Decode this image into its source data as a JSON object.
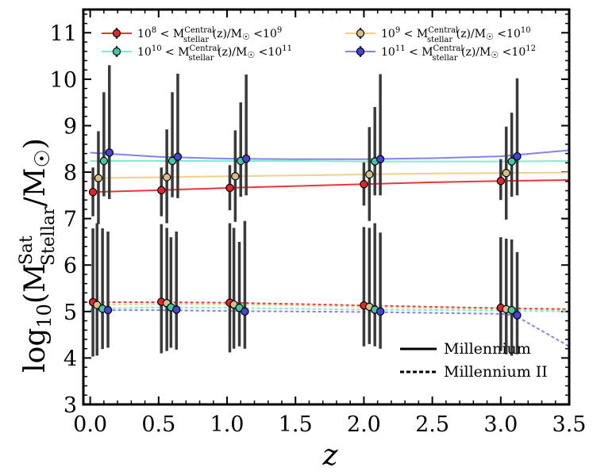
{
  "chart_data": {
    "type": "line",
    "xlabel": "z",
    "ylabel": "log10(M Stellar Sat / M sun)",
    "ylabel_parts": {
      "prefix": "log",
      "sub10": "10",
      "open": "(M",
      "sup": "Sat",
      "sub": "Stellar",
      "mid": "/M",
      "sun": "☉",
      "close": ")"
    },
    "xlim": [
      -0.05,
      3.5
    ],
    "ylim": [
      3,
      11.5
    ],
    "xticks": [
      0.0,
      0.5,
      1.0,
      1.5,
      2.0,
      2.5,
      3.0,
      3.5
    ],
    "xtick_labels": [
      "0.0",
      "0.5",
      "1.0",
      "1.5",
      "2.0",
      "2.5",
      "3.0",
      "3.5"
    ],
    "yticks": [
      3,
      4,
      5,
      6,
      7,
      8,
      9,
      10,
      11
    ],
    "ytick_labels": [
      "3",
      "4",
      "5",
      "6",
      "7",
      "8",
      "9",
      "10",
      "11"
    ],
    "legend": [
      {
        "id": "s1",
        "color": "#e8383a",
        "marker": "#e8222a",
        "lo": "10",
        "lo_exp": "8",
        "hi": "10",
        "hi_exp": "9",
        "lt": "<",
        "M": "M",
        "sup": "Central",
        "sub": "stellar",
        "zpart": "(z)/M",
        "sun": "☉"
      },
      {
        "id": "s2",
        "color": "#f0d08a",
        "marker": "#d4bf86",
        "lo": "10",
        "lo_exp": "9",
        "hi": "10",
        "hi_exp": "10",
        "lt": "<",
        "M": "M",
        "sup": "Central",
        "sub": "stellar",
        "zpart": "(z)/M",
        "sun": "☉"
      },
      {
        "id": "s3",
        "color": "#80ecd2",
        "marker": "#3ec9a4",
        "lo": "10",
        "lo_exp": "10",
        "hi": "10",
        "hi_exp": "11",
        "lt": "<",
        "M": "M",
        "sup": "Central",
        "sub": "stellar",
        "zpart": "(z)/M",
        "sun": "☉"
      },
      {
        "id": "s4",
        "color": "#8282f0",
        "marker": "#4444d8",
        "lo": "10",
        "lo_exp": "11",
        "hi": "10",
        "hi_exp": "12",
        "lt": "<",
        "M": "M",
        "sup": "Central",
        "sub": "stellar",
        "zpart": "(z)/M",
        "sun": "☉"
      }
    ],
    "legend2": [
      {
        "label": "Millennium",
        "style": "solid"
      },
      {
        "label": "Millennium II",
        "style": "dashed"
      }
    ],
    "series": [
      {
        "id": "s1",
        "name": "10^8 < M_stellar^Central(z)/M_sun < 10^9 (Millennium)",
        "color": "#e8383a",
        "dashed": false,
        "x": [
          0.0,
          0.5,
          1.0,
          1.5,
          2.0,
          2.5,
          3.0,
          3.5
        ],
        "y": [
          7.57,
          7.61,
          7.66,
          7.7,
          7.74,
          7.78,
          7.81,
          7.83
        ]
      },
      {
        "id": "s2",
        "name": "10^9 < M_stellar^Central(z)/M_sun < 10^10 (Millennium)",
        "color": "#f0d08a",
        "dashed": false,
        "x": [
          0.0,
          0.5,
          1.0,
          1.5,
          2.0,
          2.5,
          3.0,
          3.5
        ],
        "y": [
          7.87,
          7.89,
          7.91,
          7.93,
          7.95,
          7.97,
          7.98,
          7.99
        ]
      },
      {
        "id": "s3",
        "name": "10^10 < M_stellar^Central(z)/M_sun < 10^11 (Millennium)",
        "color": "#80ecd2",
        "dashed": false,
        "x": [
          0.0,
          0.5,
          1.0,
          1.5,
          2.0,
          2.5,
          3.0,
          3.5
        ],
        "y": [
          8.24,
          8.24,
          8.24,
          8.24,
          8.23,
          8.23,
          8.23,
          8.24
        ]
      },
      {
        "id": "s4",
        "name": "10^11 < M_stellar^Central(z)/M_sun < 10^12 (Millennium)",
        "color": "#8282f0",
        "dashed": false,
        "x": [
          0.0,
          0.5,
          1.0,
          1.5,
          2.0,
          2.5,
          3.0,
          3.5
        ],
        "y": [
          8.42,
          8.33,
          8.29,
          8.28,
          8.28,
          8.3,
          8.34,
          8.47
        ]
      },
      {
        "id": "s1b",
        "name": "10^8-10^9 (Millennium II)",
        "color": "#e8383a",
        "dashed": true,
        "x": [
          0.0,
          0.5,
          1.0,
          1.5,
          2.0,
          2.5,
          3.0,
          3.5
        ],
        "y": [
          5.2,
          5.2,
          5.19,
          5.16,
          5.13,
          5.1,
          5.07,
          5.05
        ]
      },
      {
        "id": "s2b",
        "name": "10^9-10^10 (Millennium II)",
        "color": "#f0d08a",
        "dashed": true,
        "x": [
          0.0,
          0.5,
          1.0,
          1.5,
          2.0,
          2.5,
          3.0,
          3.5
        ],
        "y": [
          5.14,
          5.16,
          5.15,
          5.13,
          5.1,
          5.07,
          5.04,
          5.02
        ]
      },
      {
        "id": "s3b",
        "name": "10^10-10^11 (Millennium II)",
        "color": "#80ecd2",
        "dashed": true,
        "x": [
          0.0,
          0.5,
          1.0,
          1.5,
          2.0,
          2.5,
          3.0,
          3.5
        ],
        "y": [
          5.06,
          5.09,
          5.08,
          5.06,
          5.04,
          5.03,
          5.02,
          5.0
        ]
      },
      {
        "id": "s4b",
        "name": "10^11-10^12 (Millennium II)",
        "color": "#8282f0",
        "dashed": true,
        "x": [
          0.0,
          0.5,
          1.0,
          1.5,
          2.0,
          2.5,
          3.0,
          3.1,
          3.5
        ],
        "y": [
          5.03,
          5.03,
          5.01,
          5.0,
          4.99,
          4.97,
          4.95,
          4.92,
          4.25
        ]
      }
    ],
    "points": [
      {
        "series": "s1",
        "x": 0.02,
        "y": 7.57,
        "lo": 7.05,
        "hi": 8.1
      },
      {
        "series": "s2",
        "x": 0.06,
        "y": 7.87,
        "lo": 6.88,
        "hi": 8.88
      },
      {
        "series": "s3",
        "x": 0.1,
        "y": 8.24,
        "lo": 7.48,
        "hi": 9.72
      },
      {
        "series": "s4",
        "x": 0.14,
        "y": 8.42,
        "lo": 7.42,
        "hi": 10.3
      },
      {
        "series": "s1",
        "x": 0.52,
        "y": 7.61,
        "lo": 7.05,
        "hi": 8.1
      },
      {
        "series": "s2",
        "x": 0.56,
        "y": 7.89,
        "lo": 6.9,
        "hi": 8.92
      },
      {
        "series": "s3",
        "x": 0.6,
        "y": 8.24,
        "lo": 7.46,
        "hi": 9.72
      },
      {
        "series": "s4",
        "x": 0.64,
        "y": 8.33,
        "lo": 7.44,
        "hi": 10.12
      },
      {
        "series": "s1",
        "x": 1.02,
        "y": 7.66,
        "lo": 7.18,
        "hi": 8.15
      },
      {
        "series": "s2",
        "x": 1.06,
        "y": 7.91,
        "lo": 6.93,
        "hi": 8.9
      },
      {
        "series": "s3",
        "x": 1.1,
        "y": 8.24,
        "lo": 7.47,
        "hi": 9.5
      },
      {
        "series": "s4",
        "x": 1.14,
        "y": 8.29,
        "lo": 7.5,
        "hi": 10.1
      },
      {
        "series": "s1",
        "x": 2.0,
        "y": 7.74,
        "lo": 7.28,
        "hi": 8.21
      },
      {
        "series": "s2",
        "x": 2.04,
        "y": 7.95,
        "lo": 6.95,
        "hi": 8.97
      },
      {
        "series": "s3",
        "x": 2.08,
        "y": 8.23,
        "lo": 7.5,
        "hi": 9.4
      },
      {
        "series": "s4",
        "x": 2.12,
        "y": 8.28,
        "lo": 7.5,
        "hi": 10.11
      },
      {
        "series": "s1",
        "x": 3.0,
        "y": 7.81,
        "lo": 7.4,
        "hi": 8.28
      },
      {
        "series": "s2",
        "x": 3.04,
        "y": 7.98,
        "lo": 6.98,
        "hi": 8.98
      },
      {
        "series": "s3",
        "x": 3.08,
        "y": 8.23,
        "lo": 7.47,
        "hi": 9.28
      },
      {
        "series": "s4",
        "x": 3.12,
        "y": 8.34,
        "lo": 7.5,
        "hi": 10.02
      },
      {
        "series": "s1",
        "x": 0.02,
        "y": 5.2,
        "lo": 4.03,
        "hi": 6.79
      },
      {
        "series": "s2",
        "x": 0.05,
        "y": 5.14,
        "lo": 4.05,
        "hi": 6.9
      },
      {
        "series": "s3",
        "x": 0.09,
        "y": 5.06,
        "lo": 4.19,
        "hi": 6.79
      },
      {
        "series": "s4",
        "x": 0.13,
        "y": 5.03,
        "lo": 4.22,
        "hi": 6.72
      },
      {
        "series": "s1",
        "x": 0.52,
        "y": 5.21,
        "lo": 4.1,
        "hi": 6.88
      },
      {
        "series": "s2",
        "x": 0.56,
        "y": 5.18,
        "lo": 4.15,
        "hi": 6.8
      },
      {
        "series": "s3",
        "x": 0.59,
        "y": 5.09,
        "lo": 4.22,
        "hi": 6.6
      },
      {
        "series": "s4",
        "x": 0.63,
        "y": 5.04,
        "lo": 4.18,
        "hi": 6.72
      },
      {
        "series": "s1",
        "x": 1.02,
        "y": 5.19,
        "lo": 4.12,
        "hi": 6.9
      },
      {
        "series": "s2",
        "x": 1.05,
        "y": 5.15,
        "lo": 4.2,
        "hi": 6.8
      },
      {
        "series": "s3",
        "x": 1.09,
        "y": 5.08,
        "lo": 4.25,
        "hi": 6.5
      },
      {
        "series": "s4",
        "x": 1.13,
        "y": 5.0,
        "lo": 4.2,
        "hi": 6.95
      },
      {
        "series": "s1",
        "x": 2.0,
        "y": 5.13,
        "lo": 4.25,
        "hi": 6.82
      },
      {
        "series": "s2",
        "x": 2.04,
        "y": 5.1,
        "lo": 4.3,
        "hi": 6.8
      },
      {
        "series": "s3",
        "x": 2.08,
        "y": 5.04,
        "lo": 4.25,
        "hi": 6.9
      },
      {
        "series": "s4",
        "x": 2.12,
        "y": 5.0,
        "lo": 4.2,
        "hi": 6.7
      },
      {
        "series": "s1",
        "x": 3.0,
        "y": 5.08,
        "lo": 4.15,
        "hi": 6.6
      },
      {
        "series": "s2",
        "x": 3.04,
        "y": 5.05,
        "lo": 4.08,
        "hi": 6.57
      },
      {
        "series": "s3",
        "x": 3.08,
        "y": 5.03,
        "lo": 4.05,
        "hi": 6.55
      },
      {
        "series": "s4",
        "x": 3.12,
        "y": 4.92,
        "lo": 4.08,
        "hi": 6.28
      }
    ]
  }
}
